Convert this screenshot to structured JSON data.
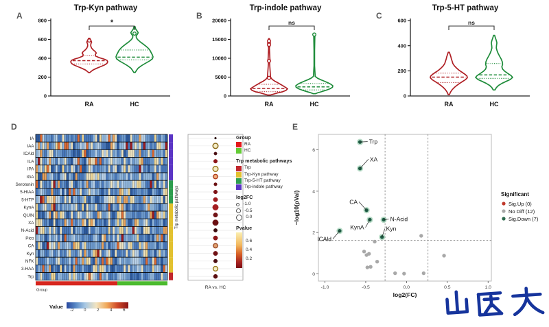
{
  "figure": {
    "background": "#FFFFFF"
  },
  "watermark": {
    "text": "山医大",
    "color": "#16349C"
  },
  "chart_data": [
    {
      "id": "violin-a",
      "type": "violin",
      "panel_label": "A",
      "title": "Trp-Kyn pathway",
      "significance": "*",
      "categories": [
        "RA",
        "HC"
      ],
      "ylim": [
        0,
        800
      ],
      "yticks": [
        0,
        200,
        400,
        600,
        800
      ],
      "series": [
        {
          "name": "RA",
          "color": "#AF1F24",
          "median": 375,
          "q1": 340,
          "q3": 430,
          "knots": [
            588
          ],
          "profile": [
            [
              612,
              0.03
            ],
            [
              590,
              0.09
            ],
            [
              572,
              0.13
            ],
            [
              552,
              0.09
            ],
            [
              530,
              0.08
            ],
            [
              508,
              0.13
            ],
            [
              488,
              0.22
            ],
            [
              470,
              0.33
            ],
            [
              455,
              0.38
            ],
            [
              440,
              0.33
            ],
            [
              424,
              0.34
            ],
            [
              408,
              0.52
            ],
            [
              392,
              0.78
            ],
            [
              378,
              0.96
            ],
            [
              362,
              1.0
            ],
            [
              345,
              0.95
            ],
            [
              328,
              0.82
            ],
            [
              310,
              0.6
            ],
            [
              292,
              0.38
            ],
            [
              275,
              0.2
            ],
            [
              258,
              0.09
            ],
            [
              248,
              0.03
            ]
          ]
        },
        {
          "name": "HC",
          "color": "#1E8C3A",
          "median": 412,
          "q1": 383,
          "q3": 488,
          "knots": [
            662
          ],
          "profile": [
            [
              735,
              0.03
            ],
            [
              712,
              0.06
            ],
            [
              692,
              0.13
            ],
            [
              672,
              0.2
            ],
            [
              655,
              0.16
            ],
            [
              638,
              0.09
            ],
            [
              618,
              0.1
            ],
            [
              598,
              0.17
            ],
            [
              575,
              0.3
            ],
            [
              552,
              0.46
            ],
            [
              528,
              0.62
            ],
            [
              505,
              0.75
            ],
            [
              482,
              0.84
            ],
            [
              460,
              0.9
            ],
            [
              438,
              0.96
            ],
            [
              415,
              1.0
            ],
            [
              395,
              0.97
            ],
            [
              372,
              0.82
            ],
            [
              348,
              0.6
            ],
            [
              322,
              0.38
            ],
            [
              296,
              0.2
            ],
            [
              270,
              0.1
            ],
            [
              250,
              0.04
            ]
          ]
        }
      ]
    },
    {
      "id": "violin-b",
      "type": "violin",
      "panel_label": "B",
      "title": "Trp-indole pathway",
      "significance": "ns",
      "categories": [
        "RA",
        "HC"
      ],
      "ylim": [
        0,
        20000
      ],
      "yticks": [
        0,
        5000,
        10000,
        15000,
        20000
      ],
      "series": [
        {
          "name": "RA",
          "color": "#AF1F24",
          "median": 2000,
          "q1": 1150,
          "q3": 3100,
          "knots": [
            14600,
            13600,
            9300,
            4800
          ],
          "profile": [
            [
              15200,
              0.02
            ],
            [
              14600,
              0.06
            ],
            [
              14000,
              0.07
            ],
            [
              13400,
              0.06
            ],
            [
              12800,
              0.02
            ],
            [
              9800,
              0.05
            ],
            [
              9300,
              0.07
            ],
            [
              8800,
              0.03
            ],
            [
              5100,
              0.08
            ],
            [
              4700,
              0.12
            ],
            [
              4300,
              0.2
            ],
            [
              3900,
              0.32
            ],
            [
              3500,
              0.48
            ],
            [
              3100,
              0.62
            ],
            [
              2700,
              0.76
            ],
            [
              2300,
              0.88
            ],
            [
              1900,
              1.0
            ],
            [
              1500,
              0.92
            ],
            [
              1100,
              0.72
            ],
            [
              800,
              0.46
            ],
            [
              500,
              0.24
            ],
            [
              250,
              0.08
            ]
          ]
        },
        {
          "name": "HC",
          "color": "#1E8C3A",
          "median": 2400,
          "q1": 1600,
          "q3": 3300,
          "knots": [
            16300
          ],
          "profile": [
            [
              16600,
              0.04
            ],
            [
              16200,
              0.07
            ],
            [
              15800,
              0.03
            ],
            [
              12000,
              0.015
            ],
            [
              8000,
              0.015
            ],
            [
              5200,
              0.05
            ],
            [
              4700,
              0.18
            ],
            [
              4300,
              0.35
            ],
            [
              3900,
              0.55
            ],
            [
              3500,
              0.74
            ],
            [
              3100,
              0.9
            ],
            [
              2700,
              1.0
            ],
            [
              2300,
              0.98
            ],
            [
              1900,
              0.85
            ],
            [
              1500,
              0.62
            ],
            [
              1100,
              0.36
            ],
            [
              800,
              0.16
            ],
            [
              600,
              0.06
            ]
          ]
        }
      ]
    },
    {
      "id": "violin-c",
      "type": "violin",
      "panel_label": "C",
      "title": "Trp-5-HT pathway",
      "significance": "ns",
      "categories": [
        "RA",
        "HC"
      ],
      "ylim": [
        0,
        600
      ],
      "yticks": [
        0,
        200,
        400,
        600
      ],
      "series": [
        {
          "name": "RA",
          "color": "#AF1F24",
          "median": 150,
          "q1": 107,
          "q3": 182,
          "knots": [],
          "profile": [
            [
              348,
              0.03
            ],
            [
              330,
              0.07
            ],
            [
              312,
              0.11
            ],
            [
              294,
              0.14
            ],
            [
              276,
              0.18
            ],
            [
              258,
              0.22
            ],
            [
              240,
              0.3
            ],
            [
              222,
              0.42
            ],
            [
              204,
              0.56
            ],
            [
              188,
              0.72
            ],
            [
              172,
              0.88
            ],
            [
              158,
              0.98
            ],
            [
              145,
              1.0
            ],
            [
              130,
              0.9
            ],
            [
              115,
              0.74
            ],
            [
              100,
              0.58
            ],
            [
              85,
              0.44
            ],
            [
              68,
              0.3
            ],
            [
              50,
              0.18
            ],
            [
              30,
              0.09
            ],
            [
              10,
              0.03
            ]
          ]
        },
        {
          "name": "HC",
          "color": "#1E8C3A",
          "median": 168,
          "q1": 140,
          "q3": 258,
          "knots": [],
          "profile": [
            [
              482,
              0.03
            ],
            [
              462,
              0.07
            ],
            [
              442,
              0.12
            ],
            [
              422,
              0.15
            ],
            [
              402,
              0.13
            ],
            [
              382,
              0.12
            ],
            [
              360,
              0.16
            ],
            [
              338,
              0.22
            ],
            [
              316,
              0.3
            ],
            [
              294,
              0.38
            ],
            [
              272,
              0.44
            ],
            [
              252,
              0.46
            ],
            [
              232,
              0.42
            ],
            [
              214,
              0.46
            ],
            [
              196,
              0.58
            ],
            [
              178,
              0.76
            ],
            [
              162,
              0.92
            ],
            [
              148,
              1.0
            ],
            [
              132,
              0.88
            ],
            [
              116,
              0.65
            ],
            [
              100,
              0.42
            ],
            [
              84,
              0.24
            ],
            [
              66,
              0.12
            ],
            [
              48,
              0.05
            ]
          ]
        }
      ]
    },
    {
      "id": "heatmap-d",
      "type": "heatmap",
      "panel_label": "D",
      "rows": [
        "IA",
        "IAA",
        "ICAld",
        "ILA",
        "IPA",
        "IGA",
        "Serotonin",
        "5-HIAA",
        "5-HTP",
        "KynA",
        "QUIN",
        "XA",
        "N-Acid",
        "Pico",
        "CA",
        "Kyn",
        "NFK",
        "3-HAA",
        "Trp"
      ],
      "n_cols": 60,
      "seed": 7,
      "palette": [
        [
          "#2C5AA0",
          9
        ],
        [
          "#4A7BBF",
          22
        ],
        [
          "#6E9CD1",
          22
        ],
        [
          "#93B9DF",
          14
        ],
        [
          "#BCD4EA",
          8
        ],
        [
          "#EFE4C0",
          10
        ],
        [
          "#F0D795",
          6
        ],
        [
          "#E8A25B",
          4
        ],
        [
          "#DE6A32",
          2.5
        ],
        [
          "#9E1B20",
          1.5
        ]
      ],
      "row_pathway": [
        "indole",
        "indole",
        "indole",
        "indole",
        "indole",
        "indole",
        "5ht",
        "5ht",
        "5ht",
        "kyn",
        "kyn",
        "kyn",
        "kyn",
        "kyn",
        "kyn",
        "kyn",
        "kyn",
        "kyn",
        "trp"
      ],
      "pathway_colors": {
        "indole": "#5B35C5",
        "5ht": "#2E9E4F",
        "kyn": "#E2C12F",
        "trp": "#C1272D"
      },
      "group_bar": {
        "label": "Group",
        "split": 0.62,
        "colors": [
          "#D7261E",
          "#4CBB2F"
        ]
      },
      "side_label": "Trp metabolic pathways"
    },
    {
      "id": "dotplot-d",
      "type": "dotplot",
      "xlabel": "RA vs. HC",
      "dots": [
        {
          "metabolite": "IA",
          "r": 1.4,
          "fill": "#2B0A0A",
          "stroke": "#2B0A0A"
        },
        {
          "metabolite": "IAA",
          "r": 3.8,
          "fill": "#F4EDC6",
          "stroke": "#8A6A1A"
        },
        {
          "metabolite": "ICAld",
          "r": 2.2,
          "fill": "#4A0F12",
          "stroke": "#4A0F12"
        },
        {
          "metabolite": "ILA",
          "r": 2.8,
          "fill": "#8C1518",
          "stroke": "#8C1518"
        },
        {
          "metabolite": "IPA",
          "r": 3.8,
          "fill": "#F4EDC6",
          "stroke": "#9A7B20"
        },
        {
          "metabolite": "IGA",
          "r": 3.2,
          "fill": "#EFAF7E",
          "stroke": "#B04020"
        },
        {
          "metabolite": "Serotonin",
          "r": 2.3,
          "fill": "#6B1012",
          "stroke": "#6B1012"
        },
        {
          "metabolite": "5-HIAA",
          "r": 2.8,
          "fill": "#7E1316",
          "stroke": "#7E1316"
        },
        {
          "metabolite": "5-HTP",
          "r": 3.2,
          "fill": "#9E1B1E",
          "stroke": "#9E1B1E"
        },
        {
          "metabolite": "KynA",
          "r": 4.2,
          "fill": "#A41E22",
          "stroke": "#A41E22"
        },
        {
          "metabolite": "QUIN",
          "r": 3.2,
          "fill": "#701114",
          "stroke": "#701114"
        },
        {
          "metabolite": "XA",
          "r": 4.2,
          "fill": "#6B1012",
          "stroke": "#6B1012"
        },
        {
          "metabolite": "N-Acid",
          "r": 2.7,
          "fill": "#3C0C0E",
          "stroke": "#3C0C0E"
        },
        {
          "metabolite": "Pico",
          "r": 3.2,
          "fill": "#8C1518",
          "stroke": "#8C1518"
        },
        {
          "metabolite": "CA",
          "r": 3.2,
          "fill": "#E0A070",
          "stroke": "#A0522D"
        },
        {
          "metabolite": "Kyn",
          "r": 3.2,
          "fill": "#701114",
          "stroke": "#701114"
        },
        {
          "metabolite": "NFK",
          "r": 2.8,
          "fill": "#4A0F12",
          "stroke": "#4A0F12"
        },
        {
          "metabolite": "3-HAA",
          "r": 3.4,
          "fill": "#F4EDC6",
          "stroke": "#9A7B20"
        },
        {
          "metabolite": "Trp",
          "r": 3.0,
          "fill": "#5A0E10",
          "stroke": "#5A0E10"
        }
      ]
    },
    {
      "id": "volcano-e",
      "type": "scatter",
      "panel_label": "E",
      "xlabel": "log2(FC)",
      "ylabel": "−log10(pVal)",
      "xlim": [
        -1.08,
        1.04
      ],
      "ylim": [
        -0.35,
        6.75
      ],
      "xticks": [
        -1.0,
        -0.5,
        0.0,
        0.5,
        1.0
      ],
      "yticks": [
        0,
        2,
        4,
        6
      ],
      "vlines": [
        -0.263,
        0.263
      ],
      "hline": 1.62,
      "sig_down_points": [
        {
          "name": "Trp",
          "x": -0.57,
          "y": 6.38,
          "lx": -0.46,
          "ly": 6.33,
          "anchor": "start"
        },
        {
          "name": "XA",
          "x": -0.57,
          "y": 5.1,
          "lx": -0.45,
          "ly": 5.48,
          "anchor": "start"
        },
        {
          "name": "CA",
          "x": -0.49,
          "y": 3.08,
          "lx": -0.6,
          "ly": 3.42,
          "anchor": "end"
        },
        {
          "name": "KynA",
          "x": -0.45,
          "y": 2.62,
          "lx": -0.52,
          "ly": 2.18,
          "anchor": "end"
        },
        {
          "name": "N-Acid",
          "x": -0.28,
          "y": 2.62,
          "lx": -0.2,
          "ly": 2.58,
          "anchor": "start"
        },
        {
          "name": "Kyn",
          "x": -0.3,
          "y": 1.78,
          "lx": -0.25,
          "ly": 2.12,
          "anchor": "start"
        },
        {
          "name": "ICAld",
          "x": -0.82,
          "y": 2.08,
          "lx": -0.92,
          "ly": 1.62,
          "anchor": "end"
        }
      ],
      "no_diff_points": [
        [
          -0.39,
          1.56
        ],
        [
          0.18,
          1.84
        ],
        [
          -0.52,
          1.08
        ],
        [
          -0.46,
          0.97
        ],
        [
          -0.49,
          0.91
        ],
        [
          -0.36,
          0.59
        ],
        [
          -0.48,
          0.31
        ],
        [
          -0.44,
          0.34
        ],
        [
          0.46,
          0.88
        ],
        [
          -0.14,
          0.03
        ],
        [
          -0.03,
          0.01
        ],
        [
          0.21,
          0.03
        ]
      ],
      "colors": {
        "sig_up": "#C0392B",
        "no_diff": "#A8A8A8",
        "sig_down_fill": "#1F5C44",
        "sig_down_ring": "#7FBF9B"
      },
      "legend": {
        "title": "Significant",
        "items": [
          {
            "label": "Sig.Up (0)",
            "color": "#C0392B"
          },
          {
            "label": "No Diff (12)",
            "color": "#A8A8A8"
          },
          {
            "label": "Sig.Down (7)",
            "color": "#2F6B4F"
          }
        ]
      }
    }
  ],
  "legend_d": {
    "group": {
      "title": "Group",
      "items": [
        {
          "label": "RA",
          "color": "#E3191C"
        },
        {
          "label": "HC",
          "color": "#63CC35"
        }
      ]
    },
    "pathways": {
      "title": "Trp metabolic pathways",
      "items": [
        {
          "label": "Trp",
          "color": "#C1272D"
        },
        {
          "label": "Trp-Kyn pathway",
          "color": "#E2C12F"
        },
        {
          "label": "Trp-5-HT pathway",
          "color": "#2E9E4F"
        },
        {
          "label": "Trp-indole pathway",
          "color": "#5B35C5"
        }
      ]
    },
    "log2fc": {
      "title": "log2FC",
      "items": [
        {
          "label": "-1.0",
          "r": 1.6
        },
        {
          "label": "-0.5",
          "r": 2.6
        },
        {
          "label": "0.0",
          "r": 3.6
        }
      ]
    },
    "pvalue": {
      "title": "Pvalue",
      "ticks": [
        "0.6",
        "0.4",
        "0.2"
      ]
    }
  },
  "value_scale": {
    "label": "Value",
    "ticks": [
      -2,
      0,
      2,
      4,
      6
    ]
  }
}
